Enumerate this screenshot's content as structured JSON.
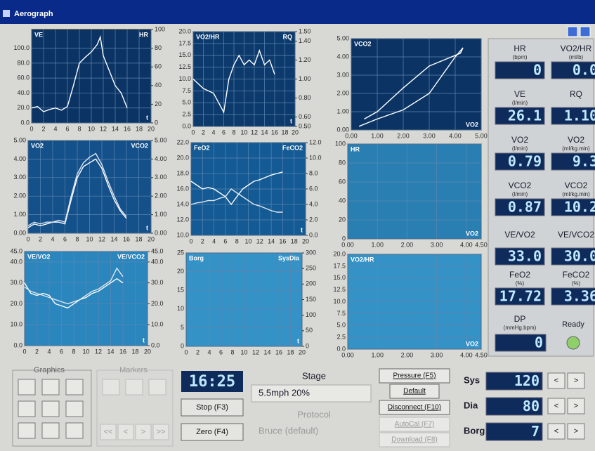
{
  "window": {
    "title": "Aerograph"
  },
  "plots": [
    {
      "left": "VE",
      "right": "HR",
      "corner": "t",
      "xlim": [
        0,
        20
      ],
      "ylim": [
        0,
        125
      ],
      "y2lim": [
        0,
        100
      ],
      "xticks": [
        0,
        2,
        4,
        6,
        8,
        10,
        12,
        14,
        16,
        18,
        20
      ],
      "yticks": [
        {
          "value": 0,
          "label": "0.0"
        },
        {
          "value": 20,
          "label": "20.0"
        },
        {
          "value": 40,
          "label": "40.0"
        },
        {
          "value": 60,
          "label": "60.0"
        },
        {
          "value": 80,
          "label": "80.0"
        },
        {
          "value": 100,
          "label": "100.0"
        }
      ],
      "y2ticks": [
        0,
        20,
        40,
        60,
        80,
        100
      ],
      "traces": [
        {
          "x": [
            0,
            1,
            2,
            3,
            4,
            5,
            6,
            7,
            8,
            9,
            10,
            11,
            11.5,
            12,
            13,
            14,
            15,
            16
          ],
          "y": [
            20,
            22,
            15,
            18,
            20,
            17,
            22,
            50,
            80,
            88,
            95,
            105,
            115,
            90,
            70,
            50,
            40,
            20
          ]
        }
      ]
    },
    {
      "left": "VO2/HR",
      "right": "RQ",
      "corner": "t",
      "xlim": [
        0,
        20
      ],
      "ylim": [
        0,
        20
      ],
      "y2lim": [
        0.5,
        1.5
      ],
      "xticks": [
        0,
        2,
        4,
        6,
        8,
        10,
        12,
        14,
        16,
        18,
        20
      ],
      "yticks": [
        {
          "value": 0,
          "label": "0.0"
        },
        {
          "value": 2.5,
          "label": "2.5"
        },
        {
          "value": 5,
          "label": "5.0"
        },
        {
          "value": 7.5,
          "label": "7.5"
        },
        {
          "value": 10,
          "label": "10.0"
        },
        {
          "value": 12.5,
          "label": "12.5"
        },
        {
          "value": 15,
          "label": "15.0"
        },
        {
          "value": 17.5,
          "label": "17.5"
        },
        {
          "value": 20,
          "label": "20.0"
        }
      ],
      "y2ticks": [
        {
          "value": 0.5,
          "label": "0.50"
        },
        {
          "value": 0.6,
          "label": "0.60"
        },
        {
          "value": 0.8,
          "label": "0.80"
        },
        {
          "value": 1,
          "label": "1.00"
        },
        {
          "value": 1.2,
          "label": "1.20"
        },
        {
          "value": 1.4,
          "label": "1.40"
        },
        {
          "value": 1.5,
          "label": "1.50"
        }
      ],
      "traces": [
        {
          "x": [
            0,
            2,
            4,
            5,
            6,
            7,
            8,
            9,
            10,
            11,
            12,
            13,
            14,
            15,
            16
          ],
          "y": [
            10,
            8,
            7,
            5,
            3,
            10,
            13,
            15,
            13,
            14,
            13,
            16,
            13,
            14,
            11
          ]
        }
      ]
    },
    {
      "left": "VCO2",
      "corner": "VO2",
      "xlim": [
        0,
        5
      ],
      "ylim": [
        0,
        5
      ],
      "xticks": [
        {
          "value": 0,
          "label": "0.00"
        },
        {
          "value": 1,
          "label": "1.00"
        },
        {
          "value": 2,
          "label": "2.00"
        },
        {
          "value": 3,
          "label": "3.00"
        },
        {
          "value": 4,
          "label": "4.00"
        },
        {
          "value": 5,
          "label": "5.00"
        }
      ],
      "yticks": [
        {
          "value": 0,
          "label": "0.00"
        },
        {
          "value": 1,
          "label": "1.00"
        },
        {
          "value": 2,
          "label": "2.00"
        },
        {
          "value": 3,
          "label": "3.00"
        },
        {
          "value": 4,
          "label": "4.00"
        },
        {
          "value": 5,
          "label": "5.00"
        }
      ],
      "traces": [
        {
          "x": [
            0.3,
            1,
            2,
            3,
            3.5,
            4,
            4.3,
            4.2,
            3,
            2,
            1,
            0.5
          ],
          "y": [
            0.2,
            0.6,
            1.1,
            2,
            3,
            4,
            4.5,
            4.2,
            3.5,
            2.3,
            1,
            0.6
          ]
        }
      ]
    },
    {
      "left": "VO2",
      "right": "VCO2",
      "corner": "t",
      "xlim": [
        0,
        20
      ],
      "ylim": [
        0,
        5
      ],
      "y2lim": [
        0,
        5
      ],
      "xticks": [
        0,
        2,
        4,
        6,
        8,
        10,
        12,
        14,
        16,
        18,
        20
      ],
      "yticks": [
        {
          "value": 0,
          "label": "0.00"
        },
        {
          "value": 1,
          "label": "1.00"
        },
        {
          "value": 2,
          "label": "2.00"
        },
        {
          "value": 3,
          "label": "3.00"
        },
        {
          "value": 4,
          "label": "4.00"
        },
        {
          "value": 5,
          "label": "5.00"
        }
      ],
      "y2ticks": [
        {
          "value": 0,
          "label": "0.00"
        },
        {
          "value": 1,
          "label": "1.00"
        },
        {
          "value": 2,
          "label": "2.00"
        },
        {
          "value": 3,
          "label": "3.00"
        },
        {
          "value": 4,
          "label": "4.00"
        },
        {
          "value": 5,
          "label": "5.00"
        }
      ],
      "traces": [
        {
          "x": [
            0,
            1,
            2,
            3,
            4,
            5,
            6,
            7,
            8,
            9,
            10,
            11,
            12,
            13,
            14,
            15,
            16
          ],
          "y": [
            0.3,
            0.5,
            0.4,
            0.5,
            0.6,
            0.6,
            0.5,
            1.8,
            3,
            3.6,
            3.8,
            4,
            3.5,
            2.6,
            1.8,
            1.2,
            0.8
          ]
        },
        {
          "axis": "y2",
          "x": [
            0,
            1,
            2,
            3,
            4,
            5,
            6,
            7,
            8,
            9,
            10,
            11,
            12,
            13,
            14,
            15,
            16
          ],
          "y": [
            0.4,
            0.6,
            0.5,
            0.6,
            0.6,
            0.7,
            0.6,
            2,
            3.2,
            3.8,
            4.1,
            4.3,
            3.7,
            2.8,
            2,
            1.3,
            0.9
          ]
        }
      ]
    },
    {
      "left": "FeO2",
      "right": "FeCO2",
      "corner": "t",
      "xlim": [
        0,
        20
      ],
      "ylim": [
        10,
        22
      ],
      "y2lim": [
        0,
        12
      ],
      "xticks": [
        0,
        2,
        4,
        6,
        8,
        10,
        12,
        14,
        16,
        18,
        20
      ],
      "yticks": [
        {
          "value": 10,
          "label": "10.0"
        },
        {
          "value": 12,
          "label": "12.0"
        },
        {
          "value": 14,
          "label": "14.0"
        },
        {
          "value": 16,
          "label": "16.0"
        },
        {
          "value": 18,
          "label": "18.0"
        },
        {
          "value": 20,
          "label": "20.0"
        },
        {
          "value": 22,
          "label": "22.0"
        }
      ],
      "y2ticks": [
        {
          "value": 0,
          "label": "0.0"
        },
        {
          "value": 2,
          "label": "2.0"
        },
        {
          "value": 4,
          "label": "4.0"
        },
        {
          "value": 6,
          "label": "6.0"
        },
        {
          "value": 8,
          "label": "8.0"
        },
        {
          "value": 10,
          "label": "10.0"
        },
        {
          "value": 12,
          "label": "12.0"
        }
      ],
      "traces": [
        {
          "x": [
            0,
            1,
            2,
            3,
            4,
            5,
            6,
            7,
            8,
            9,
            10,
            11,
            12,
            13,
            14,
            15,
            16
          ],
          "y": [
            17,
            16.5,
            16,
            16.2,
            16,
            15.5,
            15,
            14,
            15,
            16,
            16.5,
            17,
            17.2,
            17.5,
            17.8,
            18,
            18.2
          ]
        },
        {
          "axis": "y2",
          "x": [
            0,
            1,
            2,
            3,
            4,
            5,
            6,
            7,
            8,
            9,
            10,
            11,
            12,
            13,
            14,
            15,
            16
          ],
          "y": [
            4,
            4.2,
            4.3,
            4.5,
            4.5,
            4.8,
            5,
            6,
            5.5,
            5,
            4.5,
            4,
            3.8,
            3.5,
            3.2,
            3,
            3
          ]
        }
      ]
    },
    {
      "left": "HR",
      "corner": "VO2",
      "xlim": [
        0,
        4.5
      ],
      "ylim": [
        0,
        100
      ],
      "xticks": [
        {
          "value": 0,
          "label": "0.00"
        },
        {
          "value": 1,
          "label": "1.00"
        },
        {
          "value": 2,
          "label": "2.00"
        },
        {
          "value": 3,
          "label": "3.00"
        },
        {
          "value": 4,
          "label": "4.00"
        },
        {
          "value": 4.5,
          "label": "4.50"
        }
      ],
      "yticks": [
        0,
        20,
        40,
        60,
        80,
        100
      ],
      "traces": []
    },
    {
      "left": "VE/VO2",
      "right": "VE/VCO2",
      "corner": "t",
      "xlim": [
        0,
        20
      ],
      "ylim": [
        0,
        45
      ],
      "y2lim": [
        0,
        45
      ],
      "xticks": [
        0,
        2,
        4,
        6,
        8,
        10,
        12,
        14,
        16,
        18,
        20
      ],
      "yticks": [
        {
          "value": 0,
          "label": "0.0"
        },
        {
          "value": 10,
          "label": "10.0"
        },
        {
          "value": 20,
          "label": "20.0"
        },
        {
          "value": 30,
          "label": "30.0"
        },
        {
          "value": 40,
          "label": "40.0"
        },
        {
          "value": 45,
          "label": "45.0"
        }
      ],
      "y2ticks": [
        {
          "value": 0,
          "label": "0.0"
        },
        {
          "value": 10,
          "label": "10.0"
        },
        {
          "value": 20,
          "label": "20.0"
        },
        {
          "value": 30,
          "label": "30.0"
        },
        {
          "value": 40,
          "label": "40.0"
        },
        {
          "value": 45,
          "label": "45.0"
        }
      ],
      "traces": [
        {
          "x": [
            0,
            1,
            2,
            3,
            4,
            5,
            6,
            7,
            8,
            9,
            10,
            11,
            12,
            13,
            14,
            15,
            16
          ],
          "y": [
            30,
            25,
            24,
            25,
            24,
            20,
            19,
            18,
            20,
            22,
            23,
            25,
            26,
            28,
            30,
            32,
            30
          ]
        },
        {
          "axis": "y2",
          "x": [
            0,
            1,
            2,
            3,
            4,
            5,
            6,
            7,
            8,
            9,
            10,
            11,
            12,
            13,
            14,
            15,
            16
          ],
          "y": [
            28,
            26,
            25,
            24,
            23,
            22,
            21,
            20,
            21,
            22,
            24,
            26,
            27,
            29,
            31,
            37,
            33
          ]
        }
      ]
    },
    {
      "left": "Borg",
      "right": "SysDia",
      "corner": "t",
      "xlim": [
        0,
        20
      ],
      "ylim": [
        0,
        25
      ],
      "y2lim": [
        0,
        300
      ],
      "xticks": [
        0,
        2,
        4,
        6,
        8,
        10,
        12,
        14,
        16,
        18,
        20
      ],
      "yticks": [
        0,
        5,
        10,
        15,
        20,
        25
      ],
      "y2ticks": [
        0,
        50,
        100,
        150,
        200,
        250,
        300
      ],
      "traces": []
    },
    {
      "left": "VO2/HR",
      "corner": "VO2",
      "xlim": [
        0,
        4.5
      ],
      "ylim": [
        0,
        20
      ],
      "xticks": [
        {
          "value": 0,
          "label": "0.00"
        },
        {
          "value": 1,
          "label": "1.00"
        },
        {
          "value": 2,
          "label": "2.00"
        },
        {
          "value": 3,
          "label": "3.00"
        },
        {
          "value": 4,
          "label": "4.00"
        },
        {
          "value": 4.5,
          "label": "4.50"
        }
      ],
      "yticks": [
        {
          "value": 0,
          "label": "0.0"
        },
        {
          "value": 2.5,
          "label": "2.5"
        },
        {
          "value": 5,
          "label": "5.0"
        },
        {
          "value": 7.5,
          "label": "7.5"
        },
        {
          "value": 10,
          "label": "10.0"
        },
        {
          "value": 12.5,
          "label": "12.5"
        },
        {
          "value": 15,
          "label": "15.0"
        },
        {
          "value": 17.5,
          "label": "17.5"
        },
        {
          "value": 20,
          "label": "20.0"
        }
      ],
      "traces": []
    }
  ],
  "readouts": [
    {
      "label": "HR",
      "unit": "(bpm)",
      "value": "0"
    },
    {
      "label": "VO2/HR",
      "unit": "(ml/b)",
      "value": "0.0"
    },
    {
      "label": "VE",
      "unit": "(l/min)",
      "value": "26.1"
    },
    {
      "label": "RQ",
      "value": "1.10"
    },
    {
      "label": "VO2",
      "unit": "(l/min)",
      "value": "0.79"
    },
    {
      "label": "VO2",
      "unit": "(ml/kg.min)",
      "value": "9.3"
    },
    {
      "label": "VCO2",
      "unit": "(l/min)",
      "value": "0.87"
    },
    {
      "label": "VCO2",
      "unit": "(ml/kg.min)",
      "value": "10.2"
    },
    {
      "label": "VE/VO2",
      "value": "33.0"
    },
    {
      "label": "VE/VCO2",
      "value": "30.0"
    },
    {
      "label": "FeO2",
      "unit": "(%)",
      "value": "17.72"
    },
    {
      "label": "FeCO2",
      "unit": "(%)",
      "value": "3.36"
    }
  ],
  "dp": {
    "label": "DP",
    "unit": "(mmHg.bpm)",
    "value": "0"
  },
  "status": "Ready",
  "controls": {
    "graphics": "Graphics",
    "markers": "Markers",
    "marker_nav": [
      "<<",
      "<",
      ">",
      ">>"
    ],
    "clock": "16:25",
    "stop": "Stop (F3)",
    "zero": "Zero (F4)",
    "stage_label": "Stage",
    "stage": "5.5mph 20%",
    "protocol_label": "Protocol",
    "protocol": "Bruce (default)",
    "buttons": [
      "Pressure (F5)",
      "Default",
      "Disconnect (F10)",
      "AutoCal (F7)",
      "Download (F8)"
    ]
  },
  "pressures": [
    {
      "label": "Sys",
      "value": "120"
    },
    {
      "label": "Dia",
      "value": "80"
    },
    {
      "label": "Borg",
      "value": "7"
    }
  ],
  "step_buttons": [
    "<",
    ">"
  ]
}
